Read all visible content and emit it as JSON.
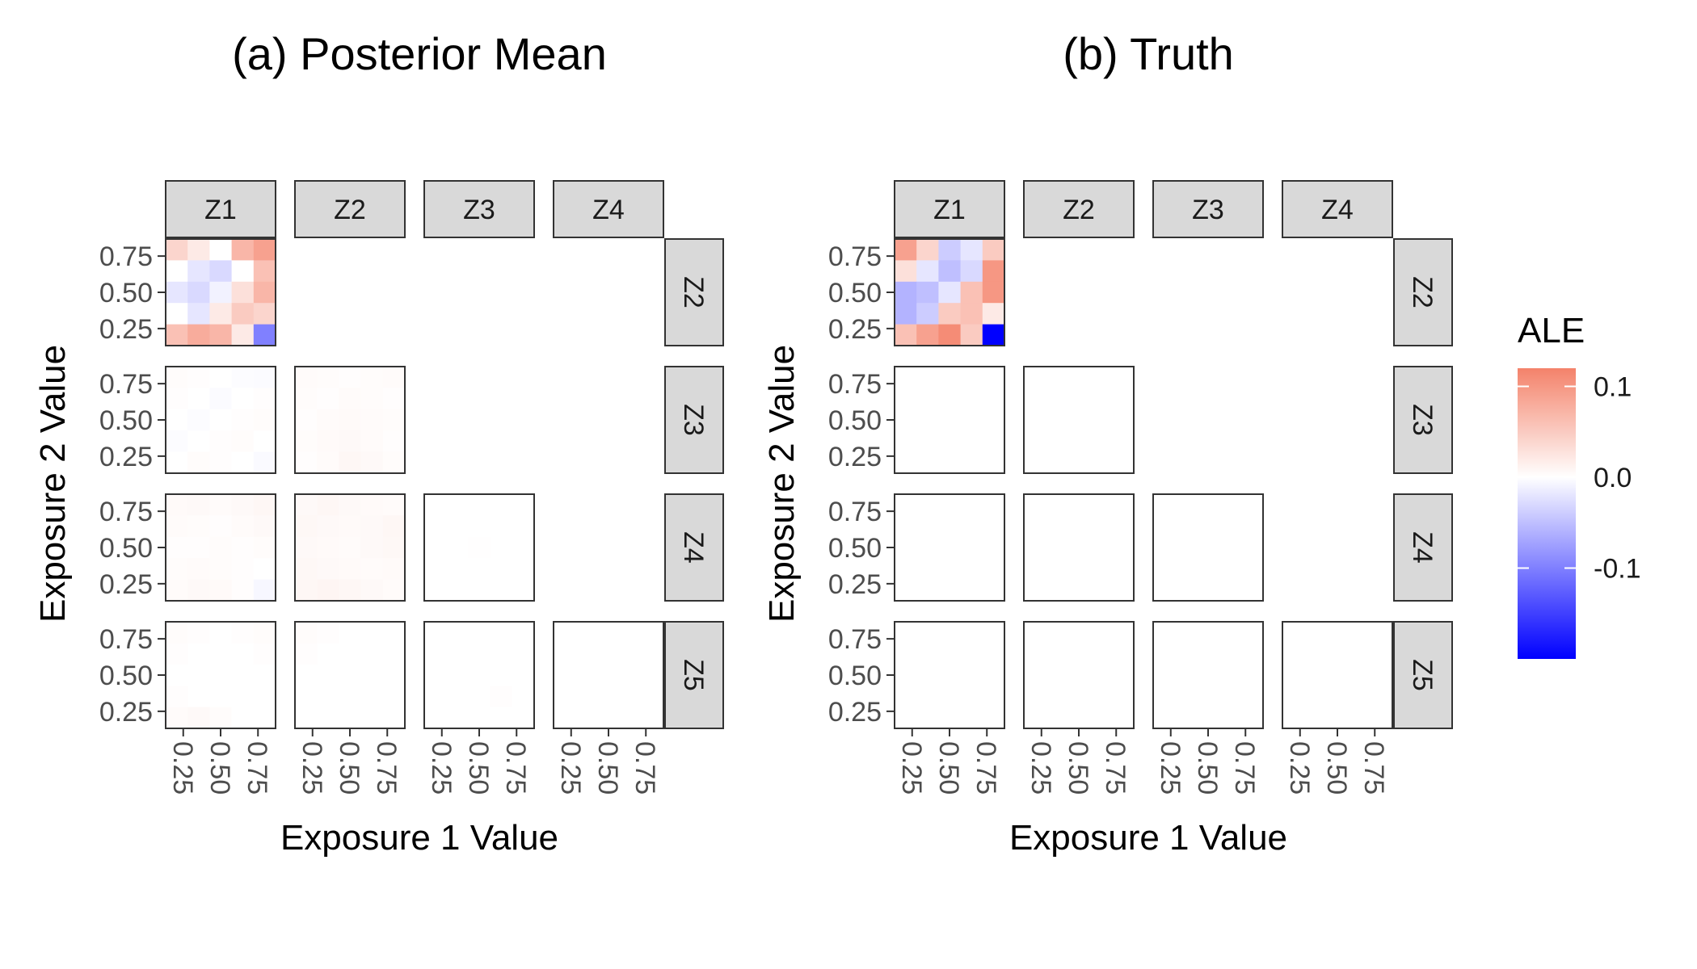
{
  "chart_data": [
    {
      "type": "heatmap",
      "title": "(a) Posterior Mean",
      "xlabel": "Exposure 1 Value",
      "ylabel": "Exposure 2 Value",
      "col_strips": [
        "Z1",
        "Z2",
        "Z3",
        "Z4"
      ],
      "row_strips": [
        "Z2",
        "Z3",
        "Z4",
        "Z5"
      ],
      "x_ticks": [
        "0.25",
        "0.50",
        "0.75"
      ],
      "y_ticks": [
        "0.25",
        "0.50",
        "0.75"
      ],
      "grid_cells": 5,
      "panels": [
        {
          "row": 0,
          "col": 0,
          "values": [
            [
              0.04,
              0.02,
              0.0,
              0.07,
              0.09
            ],
            [
              0.0,
              -0.02,
              -0.03,
              0.0,
              0.06
            ],
            [
              -0.02,
              -0.03,
              -0.01,
              0.03,
              0.07
            ],
            [
              0.0,
              -0.02,
              0.02,
              0.05,
              0.04
            ],
            [
              0.06,
              0.08,
              0.07,
              0.02,
              -0.1
            ]
          ]
        },
        {
          "row": 1,
          "col": 0,
          "values": [
            [
              0.003,
              0.002,
              0.0,
              -0.002,
              -0.003
            ],
            [
              0.002,
              0.0,
              -0.003,
              0.0,
              0.002
            ],
            [
              0.0,
              -0.002,
              0.0,
              0.002,
              0.003
            ],
            [
              -0.002,
              0.0,
              0.002,
              0.003,
              0.0
            ],
            [
              0.0,
              0.003,
              0.002,
              0.0,
              -0.004
            ]
          ]
        },
        {
          "row": 1,
          "col": 1,
          "values": [
            [
              0.004,
              0.003,
              0.002,
              0.003,
              0.004
            ],
            [
              0.003,
              0.002,
              0.004,
              0.003,
              0.002
            ],
            [
              0.002,
              0.004,
              0.005,
              0.004,
              0.003
            ],
            [
              0.003,
              0.005,
              0.006,
              0.004,
              0.002
            ],
            [
              0.002,
              0.004,
              0.008,
              0.006,
              0.003
            ]
          ]
        },
        {
          "row": 2,
          "col": 0,
          "values": [
            [
              0.005,
              0.006,
              0.004,
              0.006,
              0.008
            ],
            [
              0.004,
              0.003,
              0.002,
              0.004,
              0.006
            ],
            [
              0.002,
              0.002,
              0.003,
              0.002,
              0.003
            ],
            [
              0.003,
              0.004,
              0.003,
              0.002,
              0.0
            ],
            [
              0.004,
              0.006,
              0.005,
              0.002,
              -0.006
            ]
          ]
        },
        {
          "row": 2,
          "col": 1,
          "values": [
            [
              0.006,
              0.008,
              0.006,
              0.005,
              0.004
            ],
            [
              0.007,
              0.006,
              0.005,
              0.006,
              0.008
            ],
            [
              0.006,
              0.005,
              0.004,
              0.006,
              0.007
            ],
            [
              0.007,
              0.006,
              0.005,
              0.004,
              0.005
            ],
            [
              0.008,
              0.01,
              0.008,
              0.006,
              0.004
            ]
          ]
        },
        {
          "row": 2,
          "col": 2,
          "values": [
            [
              0.0,
              0.0,
              0.0,
              0.0,
              0.0
            ],
            [
              0.0,
              0.0,
              0.0,
              0.0,
              0.0
            ],
            [
              0.0,
              0.0,
              0.001,
              0.0,
              0.0
            ],
            [
              0.0,
              0.0,
              0.0,
              0.0,
              0.0
            ],
            [
              0.0,
              0.0,
              0.0,
              0.0,
              0.0
            ]
          ]
        },
        {
          "row": 3,
          "col": 0,
          "values": [
            [
              0.003,
              0.002,
              0.0,
              0.002,
              0.003
            ],
            [
              0.002,
              0.0,
              0.0,
              0.0,
              0.002
            ],
            [
              0.0,
              0.0,
              0.0,
              0.0,
              0.0
            ],
            [
              0.002,
              0.0,
              0.0,
              0.0,
              0.0
            ],
            [
              0.004,
              0.006,
              0.003,
              0.0,
              0.0
            ]
          ]
        },
        {
          "row": 3,
          "col": 1,
          "values": [
            [
              0.003,
              0.002,
              0.0,
              0.0,
              0.0
            ],
            [
              0.002,
              0.0,
              0.0,
              0.0,
              0.0
            ],
            [
              0.0,
              0.0,
              0.0,
              0.0,
              0.0
            ],
            [
              0.0,
              0.0,
              0.0,
              0.0,
              0.0
            ],
            [
              0.0,
              0.0,
              0.0,
              0.0,
              0.0
            ]
          ]
        },
        {
          "row": 3,
          "col": 2,
          "values": [
            [
              0.0,
              0.0,
              0.0,
              0.0,
              0.0
            ],
            [
              0.0,
              0.0,
              0.0,
              0.0,
              0.0
            ],
            [
              0.0,
              0.0,
              0.0,
              0.0,
              0.0
            ],
            [
              0.0,
              0.0,
              0.0,
              0.002,
              0.0
            ],
            [
              0.0,
              0.0,
              0.0,
              0.0,
              0.0
            ]
          ]
        }
      ]
    },
    {
      "type": "heatmap",
      "title": "(b) Truth",
      "xlabel": "Exposure 1 Value",
      "ylabel": "Exposure 2 Value",
      "col_strips": [
        "Z1",
        "Z2",
        "Z3",
        "Z4"
      ],
      "row_strips": [
        "Z2",
        "Z3",
        "Z4",
        "Z5"
      ],
      "x_ticks": [
        "0.25",
        "0.50",
        "0.75"
      ],
      "y_ticks": [
        "0.25",
        "0.50",
        "0.75"
      ],
      "grid_cells": 5,
      "panels": [
        {
          "row": 0,
          "col": 0,
          "values": [
            [
              0.09,
              0.04,
              -0.04,
              -0.02,
              0.05
            ],
            [
              0.03,
              -0.02,
              -0.05,
              -0.03,
              0.1
            ],
            [
              -0.06,
              -0.05,
              -0.02,
              0.06,
              0.1
            ],
            [
              -0.06,
              -0.04,
              0.05,
              0.06,
              0.02
            ],
            [
              0.06,
              0.09,
              0.11,
              0.05,
              -0.2
            ]
          ]
        }
      ]
    }
  ],
  "legend": {
    "title": "ALE",
    "labels": [
      "0.1",
      "0.0",
      "-0.1"
    ],
    "label_values": [
      0.1,
      0.0,
      -0.1
    ],
    "range": [
      -0.2,
      0.12
    ],
    "low_color": "#0000ff",
    "mid_color": "#ffffff",
    "high_color": "#f4826a",
    "colors": [
      "#0000ff",
      "#ffffff",
      "#f4826a"
    ]
  }
}
